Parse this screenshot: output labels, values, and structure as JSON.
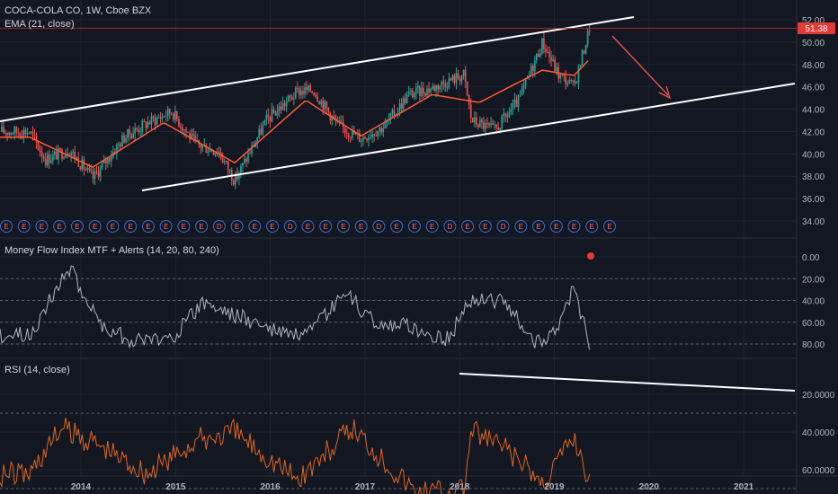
{
  "colors": {
    "background": "#131722",
    "grid": "#1f2331",
    "up": "#26a69a",
    "down": "#ef5350",
    "ema": "#ff5a36",
    "mfi_line": "#b2b5be",
    "rsi_line": "#e0651e",
    "mfi_upper_zone": "#173322",
    "mfi_lower_zone": "#3d1820",
    "rsi_zone": "#241f3d",
    "trendline": "#ffffff",
    "arrow": "#ef5350",
    "price_tag": "#e53935",
    "event_marker": "#ff6b6b",
    "event_ring": "#3e6ccc"
  },
  "chart_data": [
    {
      "type": "candlestick",
      "title": "COCA-COLA CO, 1W, Cboe BZX",
      "indicator_label": "EMA (21, close)",
      "last_price": "51.38",
      "ylim": [
        33,
        53
      ],
      "y_ticks": [
        "34.00",
        "36.00",
        "38.00",
        "40.00",
        "42.00",
        "44.00",
        "46.00",
        "48.00",
        "50.00",
        "52.00"
      ],
      "x_ticks": [
        "2014",
        "2015",
        "2016",
        "2017",
        "2018",
        "2019",
        "2020",
        "2021"
      ],
      "series_summary": [
        {
          "date": "2013-06",
          "close": 42.0
        },
        {
          "date": "2013-08",
          "close": 39.5
        },
        {
          "date": "2013-11",
          "close": 40.4
        },
        {
          "date": "2014-02",
          "close": 37.8
        },
        {
          "date": "2014-06",
          "close": 41.5
        },
        {
          "date": "2014-09",
          "close": 42.8
        },
        {
          "date": "2014-12",
          "close": 43.8
        },
        {
          "date": "2015-03",
          "close": 40.9
        },
        {
          "date": "2015-06",
          "close": 40.2
        },
        {
          "date": "2015-08",
          "close": 37.6
        },
        {
          "date": "2015-12",
          "close": 43.0
        },
        {
          "date": "2016-04",
          "close": 45.6
        },
        {
          "date": "2016-06",
          "close": 45.7
        },
        {
          "date": "2016-09",
          "close": 42.6
        },
        {
          "date": "2016-12",
          "close": 41.4
        },
        {
          "date": "2017-03",
          "close": 42.5
        },
        {
          "date": "2017-06",
          "close": 45.3
        },
        {
          "date": "2017-09",
          "close": 45.9
        },
        {
          "date": "2018-01",
          "close": 47.1
        },
        {
          "date": "2018-02",
          "close": 43.0
        },
        {
          "date": "2018-05",
          "close": 42.1
        },
        {
          "date": "2018-08",
          "close": 44.8
        },
        {
          "date": "2018-11",
          "close": 50.0
        },
        {
          "date": "2019-01",
          "close": 47.1
        },
        {
          "date": "2019-03",
          "close": 46.0
        },
        {
          "date": "2019-05",
          "close": 51.38
        }
      ],
      "ema21_summary": [
        {
          "date": "2013-06",
          "value": 41.5
        },
        {
          "date": "2014-02",
          "value": 38.8
        },
        {
          "date": "2014-11",
          "value": 42.8
        },
        {
          "date": "2015-08",
          "value": 39.2
        },
        {
          "date": "2016-05",
          "value": 44.8
        },
        {
          "date": "2016-12",
          "value": 41.6
        },
        {
          "date": "2017-09",
          "value": 45.3
        },
        {
          "date": "2018-03",
          "value": 44.6
        },
        {
          "date": "2018-11",
          "value": 47.5
        },
        {
          "date": "2019-03",
          "value": 47.0
        },
        {
          "date": "2019-05",
          "value": 48.5
        }
      ],
      "event_markers": [
        "E",
        "E",
        "E",
        "E",
        "E",
        "E",
        "E",
        "E",
        "E",
        "E",
        "E",
        "E",
        "D",
        "E",
        "E",
        "E",
        "D",
        "E",
        "E",
        "E",
        "E",
        "D",
        "E",
        "E",
        "E",
        "D",
        "E",
        "E",
        "D",
        "E",
        "E",
        "E",
        "E",
        "E",
        "E"
      ]
    },
    {
      "type": "line",
      "title": "Money Flow Index MTF + Alerts (14, 20, 80, 240)",
      "ylim": [
        -5,
        90
      ],
      "y_ticks": [
        "0.00",
        "20.00",
        "40.00",
        "60.00",
        "80.00"
      ],
      "zones": [
        {
          "from": 60,
          "to": 80,
          "kind": "upper"
        },
        {
          "from": 20,
          "to": 40,
          "kind": "lower"
        }
      ],
      "series_summary": [
        {
          "date": "2013-06",
          "value": 72
        },
        {
          "date": "2013-09",
          "value": 35
        },
        {
          "date": "2013-11",
          "value": 10
        },
        {
          "date": "2014-03",
          "value": 62
        },
        {
          "date": "2014-07",
          "value": 77
        },
        {
          "date": "2014-12",
          "value": 74
        },
        {
          "date": "2015-04",
          "value": 42
        },
        {
          "date": "2015-09",
          "value": 56
        },
        {
          "date": "2016-01",
          "value": 68
        },
        {
          "date": "2016-05",
          "value": 74
        },
        {
          "date": "2016-10",
          "value": 34
        },
        {
          "date": "2017-02",
          "value": 62
        },
        {
          "date": "2017-06",
          "value": 64
        },
        {
          "date": "2017-11",
          "value": 76
        },
        {
          "date": "2018-02",
          "value": 38
        },
        {
          "date": "2018-06",
          "value": 40
        },
        {
          "date": "2018-10",
          "value": 78
        },
        {
          "date": "2019-01",
          "value": 68
        },
        {
          "date": "2019-03",
          "value": 28
        },
        {
          "date": "2019-05",
          "value": 82
        }
      ]
    },
    {
      "type": "line",
      "title": "RSI (14, close)",
      "ylim": [
        18,
        78
      ],
      "y_ticks": [
        "20.0000",
        "40.0000",
        "60.0000"
      ],
      "zone": [
        30,
        70
      ],
      "series_summary": [
        {
          "date": "2013-06",
          "value": 62
        },
        {
          "date": "2013-10",
          "value": 38
        },
        {
          "date": "2014-02",
          "value": 45
        },
        {
          "date": "2014-09",
          "value": 62
        },
        {
          "date": "2015-03",
          "value": 45
        },
        {
          "date": "2015-08",
          "value": 40
        },
        {
          "date": "2016-04",
          "value": 65
        },
        {
          "date": "2016-11",
          "value": 38
        },
        {
          "date": "2017-03",
          "value": 55
        },
        {
          "date": "2017-07",
          "value": 72
        },
        {
          "date": "2018-01",
          "value": 70
        },
        {
          "date": "2018-02",
          "value": 40
        },
        {
          "date": "2018-06",
          "value": 48
        },
        {
          "date": "2018-11",
          "value": 67
        },
        {
          "date": "2019-03",
          "value": 42
        },
        {
          "date": "2019-05",
          "value": 66
        }
      ]
    }
  ]
}
